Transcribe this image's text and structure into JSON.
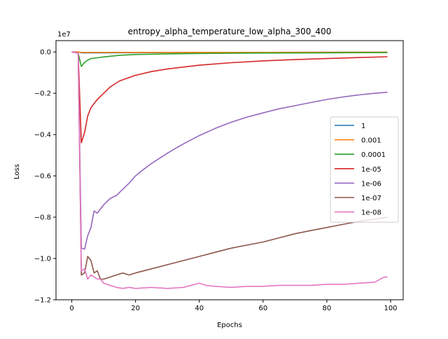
{
  "chart_data": {
    "type": "line",
    "title": "entropy_alpha_temperature_low_alpha_300_400",
    "xlabel": "Epochs",
    "ylabel": "Loss",
    "y_multiplier_label": "1e7",
    "xlim": [
      -4.95,
      103.95
    ],
    "ylim": [
      -1.2,
      0.055
    ],
    "xticks": [
      0,
      20,
      40,
      60,
      80,
      100
    ],
    "xtick_labels": [
      "0",
      "20",
      "40",
      "60",
      "80",
      "100"
    ],
    "yticks": [
      0.0,
      -0.2,
      -0.4,
      -0.6,
      -0.8,
      -1.0,
      -1.2
    ],
    "ytick_labels": [
      "0.0",
      "−0.2",
      "−0.4",
      "−0.6",
      "−0.8",
      "−1.0",
      "−1.2"
    ],
    "legend_position": "center-right",
    "series": [
      {
        "name": "1",
        "color": "#1f77b4",
        "x": [
          0,
          2,
          3,
          10,
          30,
          60,
          99
        ],
        "y": [
          0,
          0,
          -0.004,
          -0.004,
          -0.003,
          -0.002,
          -0.001
        ]
      },
      {
        "name": "0.001",
        "color": "#ff7f0e",
        "x": [
          0,
          2,
          3,
          10,
          30,
          60,
          99
        ],
        "y": [
          0,
          0,
          -0.002,
          -0.002,
          -0.002,
          -0.002,
          -0.001
        ]
      },
      {
        "name": "0.0001",
        "color": "#2ca02c",
        "x": [
          0,
          2,
          3,
          4,
          5,
          6,
          8,
          10,
          15,
          20,
          30,
          40,
          60,
          80,
          99
        ],
        "y": [
          0,
          -0.005,
          -0.07,
          -0.05,
          -0.04,
          -0.032,
          -0.028,
          -0.024,
          -0.016,
          -0.012,
          -0.009,
          -0.007,
          -0.005,
          -0.004,
          -0.003
        ]
      },
      {
        "name": "1e-05",
        "color": "#d62728",
        "x": [
          0,
          2,
          3,
          4,
          5,
          6,
          8,
          10,
          12,
          15,
          20,
          25,
          30,
          40,
          50,
          60,
          70,
          80,
          90,
          99
        ],
        "y": [
          0,
          -0.005,
          -0.44,
          -0.39,
          -0.31,
          -0.27,
          -0.23,
          -0.2,
          -0.17,
          -0.14,
          -0.113,
          -0.095,
          -0.082,
          -0.064,
          -0.052,
          -0.043,
          -0.037,
          -0.032,
          -0.027,
          -0.023
        ]
      },
      {
        "name": "1e-06",
        "color": "#9467bd",
        "x": [
          0,
          2,
          3,
          4,
          5,
          6,
          7,
          8,
          10,
          12,
          14,
          16,
          18,
          20,
          22,
          25,
          30,
          35,
          40,
          45,
          50,
          55,
          60,
          65,
          70,
          75,
          80,
          85,
          90,
          95,
          99
        ],
        "y": [
          0,
          -0.005,
          -0.95,
          -0.955,
          -0.89,
          -0.85,
          -0.77,
          -0.78,
          -0.74,
          -0.71,
          -0.695,
          -0.665,
          -0.635,
          -0.6,
          -0.575,
          -0.54,
          -0.49,
          -0.445,
          -0.405,
          -0.37,
          -0.34,
          -0.315,
          -0.295,
          -0.275,
          -0.26,
          -0.245,
          -0.23,
          -0.218,
          -0.208,
          -0.2,
          -0.195
        ]
      },
      {
        "name": "1e-07",
        "color": "#8c564b",
        "x": [
          0,
          2,
          3,
          4,
          5,
          6,
          7,
          8,
          9,
          10,
          12,
          14,
          16,
          18,
          20,
          25,
          30,
          35,
          40,
          45,
          50,
          55,
          60,
          65,
          70,
          75,
          80,
          85,
          90,
          95,
          99
        ],
        "y": [
          0,
          -0.005,
          -1.08,
          -1.07,
          -0.99,
          -1.01,
          -1.07,
          -1.06,
          -1.1,
          -1.1,
          -1.09,
          -1.08,
          -1.07,
          -1.08,
          -1.07,
          -1.05,
          -1.03,
          -1.01,
          -0.99,
          -0.97,
          -0.95,
          -0.935,
          -0.92,
          -0.9,
          -0.88,
          -0.865,
          -0.85,
          -0.835,
          -0.82,
          -0.81,
          -0.8
        ]
      },
      {
        "name": "1e-08",
        "color": "#e377c2",
        "x": [
          0,
          2,
          3,
          4,
          5,
          6,
          7,
          8,
          9,
          10,
          12,
          14,
          16,
          18,
          20,
          25,
          30,
          35,
          40,
          42,
          45,
          50,
          55,
          60,
          65,
          70,
          75,
          80,
          85,
          90,
          95,
          98,
          99
        ],
        "y": [
          0,
          -0.005,
          -1.06,
          -1.05,
          -1.1,
          -1.08,
          -1.09,
          -1.1,
          -1.1,
          -1.12,
          -1.13,
          -1.14,
          -1.145,
          -1.14,
          -1.145,
          -1.14,
          -1.145,
          -1.14,
          -1.12,
          -1.13,
          -1.135,
          -1.14,
          -1.135,
          -1.135,
          -1.13,
          -1.13,
          -1.13,
          -1.125,
          -1.125,
          -1.12,
          -1.115,
          -1.09,
          -1.09
        ]
      }
    ]
  }
}
